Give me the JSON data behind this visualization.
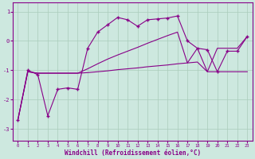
{
  "xlabel": "Windchill (Refroidissement éolien,°C)",
  "bg_color": "#cde8df",
  "line_color": "#880088",
  "grid_color": "#aaccbb",
  "xlim": [
    -0.5,
    23.5
  ],
  "ylim": [
    -3.4,
    1.3
  ],
  "xticks": [
    0,
    1,
    2,
    3,
    4,
    5,
    6,
    7,
    8,
    9,
    10,
    11,
    12,
    13,
    14,
    15,
    16,
    17,
    18,
    19,
    20,
    21,
    22,
    23
  ],
  "yticks": [
    -3,
    -2,
    -1,
    0,
    1
  ],
  "line1_x": [
    0,
    1,
    2,
    3,
    4,
    5,
    6,
    7,
    8,
    9,
    10,
    11,
    12,
    13,
    14,
    15,
    16,
    17,
    18,
    19,
    20,
    21,
    22,
    23
  ],
  "line1_y": [
    -2.7,
    -1.0,
    -1.15,
    -2.55,
    -1.65,
    -1.6,
    -1.65,
    -0.25,
    0.3,
    0.55,
    0.8,
    0.72,
    0.5,
    0.72,
    0.75,
    0.78,
    0.85,
    0.0,
    -0.25,
    -0.3,
    -1.05,
    -0.35,
    -0.35,
    0.15
  ],
  "line2_x": [
    0,
    1,
    2,
    3,
    4,
    5,
    6,
    7,
    8,
    9,
    10,
    11,
    12,
    13,
    14,
    15,
    16,
    17,
    18,
    19,
    20,
    21,
    22,
    23
  ],
  "line2_y": [
    -2.7,
    -1.05,
    -1.1,
    -1.1,
    -1.1,
    -1.1,
    -1.1,
    -1.08,
    -1.05,
    -1.02,
    -0.98,
    -0.95,
    -0.92,
    -0.88,
    -0.85,
    -0.82,
    -0.78,
    -0.75,
    -0.72,
    -1.05,
    -1.05,
    -1.05,
    -1.05,
    -1.05
  ],
  "line3_x": [
    0,
    1,
    2,
    3,
    4,
    5,
    6,
    7,
    8,
    9,
    10,
    11,
    12,
    13,
    14,
    15,
    16,
    17,
    18,
    19,
    20,
    21,
    22,
    23
  ],
  "line3_y": [
    -2.7,
    -1.05,
    -1.1,
    -1.1,
    -1.1,
    -1.1,
    -1.1,
    -0.95,
    -0.78,
    -0.62,
    -0.48,
    -0.35,
    -0.22,
    -0.08,
    0.05,
    0.18,
    0.3,
    -0.75,
    -0.25,
    -1.05,
    -0.25,
    -0.25,
    -0.25,
    0.15
  ]
}
